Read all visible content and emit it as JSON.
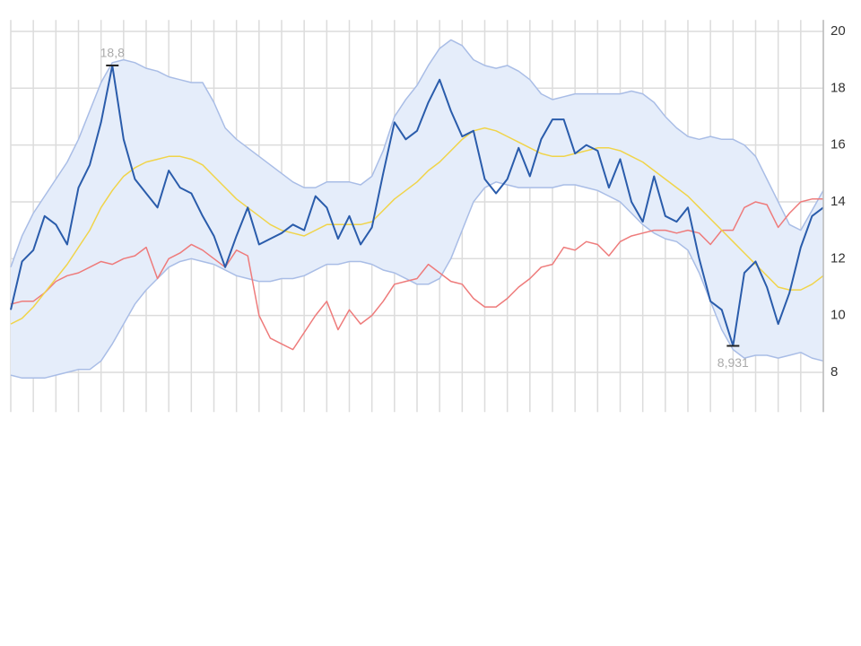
{
  "chart_data": {
    "type": "line",
    "x": [
      0,
      1,
      2,
      3,
      4,
      5,
      6,
      7,
      8,
      9,
      10,
      11,
      12,
      13,
      14,
      15,
      16,
      17,
      18,
      19,
      20,
      21,
      22,
      23,
      24,
      25,
      26,
      27,
      28,
      29,
      30,
      31,
      32,
      33,
      34,
      35,
      36,
      37,
      38,
      39,
      40,
      41,
      42,
      43,
      44,
      45,
      46,
      47,
      48,
      49,
      50,
      51,
      52,
      53,
      54,
      55,
      56,
      57,
      58,
      59,
      60,
      61,
      62,
      63,
      64,
      65,
      66,
      67,
      68,
      69,
      70,
      71,
      72
    ],
    "xlim": [
      0,
      72
    ],
    "xticks": [
      0,
      2,
      4,
      6,
      8,
      10,
      12,
      14,
      16,
      18,
      20,
      22,
      24,
      26,
      28,
      30,
      32,
      34,
      36,
      38,
      40,
      42,
      44,
      46,
      48,
      50,
      52,
      54,
      56,
      58,
      60,
      62,
      64,
      66,
      68,
      70,
      72
    ],
    "ylim": [
      6.6,
      20.4
    ],
    "yticks": [
      8,
      10,
      12,
      14,
      16,
      18,
      20
    ],
    "grid": true,
    "band_fill": "#e5edfa",
    "series": [
      {
        "color": "#2a5cab",
        "values": [
          10.2,
          11.9,
          12.3,
          13.5,
          13.2,
          12.5,
          14.5,
          15.3,
          16.8,
          18.8,
          16.2,
          14.8,
          14.3,
          13.8,
          15.1,
          14.5,
          14.3,
          13.5,
          12.8,
          11.7,
          12.8,
          13.8,
          12.5,
          12.7,
          12.9,
          13.2,
          13.0,
          14.2,
          13.8,
          12.7,
          13.5,
          12.5,
          13.1,
          15.0,
          16.8,
          16.2,
          16.5,
          17.5,
          18.3,
          17.2,
          16.3,
          16.5,
          14.8,
          14.3,
          14.8,
          15.9,
          14.9,
          16.2,
          16.9,
          16.9,
          15.7,
          16.0,
          15.8,
          14.5,
          15.5,
          14.0,
          13.3,
          14.9,
          13.5,
          13.3,
          13.8,
          12.0,
          10.5,
          10.2,
          8.931,
          11.5,
          11.9,
          11.0,
          9.7,
          10.8,
          12.4,
          13.5,
          13.8
        ]
      },
      {
        "color": "#f0d44a",
        "values": [
          9.7,
          9.9,
          10.3,
          10.8,
          11.3,
          11.8,
          12.4,
          13.0,
          13.8,
          14.4,
          14.9,
          15.2,
          15.4,
          15.5,
          15.6,
          15.6,
          15.5,
          15.3,
          14.9,
          14.5,
          14.1,
          13.8,
          13.5,
          13.2,
          13.0,
          12.9,
          12.8,
          13.0,
          13.2,
          13.2,
          13.2,
          13.2,
          13.3,
          13.7,
          14.1,
          14.4,
          14.7,
          15.1,
          15.4,
          15.8,
          16.2,
          16.5,
          16.6,
          16.5,
          16.3,
          16.1,
          15.9,
          15.7,
          15.6,
          15.6,
          15.7,
          15.8,
          15.9,
          15.9,
          15.8,
          15.6,
          15.4,
          15.1,
          14.8,
          14.5,
          14.2,
          13.8,
          13.4,
          13.0,
          12.6,
          12.2,
          11.8,
          11.4,
          11.0,
          10.9,
          10.9,
          11.1,
          11.4
        ]
      },
      {
        "color": "#ee7b7b",
        "values": [
          10.4,
          10.5,
          10.5,
          10.8,
          11.2,
          11.4,
          11.5,
          11.7,
          11.9,
          11.8,
          12.0,
          12.1,
          12.4,
          11.3,
          12.0,
          12.2,
          12.5,
          12.3,
          12.0,
          11.7,
          12.3,
          12.1,
          10.0,
          9.2,
          9.0,
          8.8,
          9.4,
          10.0,
          10.5,
          9.5,
          10.2,
          9.7,
          10.0,
          10.5,
          11.1,
          11.2,
          11.3,
          11.8,
          11.5,
          11.2,
          11.1,
          10.6,
          10.3,
          10.3,
          10.6,
          11.0,
          11.3,
          11.7,
          11.8,
          12.4,
          12.3,
          12.6,
          12.5,
          12.1,
          12.6,
          12.8,
          12.9,
          13.0,
          13.0,
          12.9,
          13.0,
          12.9,
          12.5,
          13.0,
          13.0,
          13.8,
          14.0,
          13.9,
          13.1,
          13.6,
          14.0,
          14.1,
          14.1
        ]
      },
      {
        "color": "#a9bde6",
        "values": [
          11.7,
          12.8,
          13.6,
          14.2,
          14.8,
          15.4,
          16.2,
          17.2,
          18.2,
          18.9,
          19.0,
          18.9,
          18.7,
          18.6,
          18.4,
          18.3,
          18.2,
          18.2,
          17.5,
          16.6,
          16.2,
          15.9,
          15.6,
          15.3,
          15.0,
          14.7,
          14.5,
          14.5,
          14.7,
          14.7,
          14.7,
          14.6,
          14.9,
          15.8,
          17.0,
          17.6,
          18.1,
          18.8,
          19.4,
          19.7,
          19.5,
          19.0,
          18.8,
          18.7,
          18.8,
          18.6,
          18.3,
          17.8,
          17.6,
          17.7,
          17.8,
          17.8,
          17.8,
          17.8,
          17.8,
          17.9,
          17.8,
          17.5,
          17.0,
          16.6,
          16.3,
          16.2,
          16.3,
          16.2,
          16.2,
          16.0,
          15.6,
          14.8,
          14.0,
          13.2,
          13.0,
          13.7,
          14.4
        ]
      },
      {
        "color": "#a9bde6",
        "values": [
          7.9,
          7.8,
          7.8,
          7.8,
          7.9,
          8.0,
          8.1,
          8.1,
          8.4,
          9.0,
          9.7,
          10.4,
          10.9,
          11.3,
          11.7,
          11.9,
          12.0,
          11.9,
          11.8,
          11.6,
          11.4,
          11.3,
          11.2,
          11.2,
          11.3,
          11.3,
          11.4,
          11.6,
          11.8,
          11.8,
          11.9,
          11.9,
          11.8,
          11.6,
          11.5,
          11.3,
          11.1,
          11.1,
          11.3,
          12.0,
          13.0,
          14.0,
          14.5,
          14.7,
          14.6,
          14.5,
          14.5,
          14.5,
          14.5,
          14.6,
          14.6,
          14.5,
          14.4,
          14.2,
          14.0,
          13.6,
          13.2,
          12.9,
          12.7,
          12.6,
          12.3,
          11.5,
          10.5,
          9.5,
          8.8,
          8.5,
          8.6,
          8.6,
          8.5,
          8.6,
          8.7,
          8.5,
          8.4
        ]
      }
    ],
    "annotations": [
      {
        "value": 18.8,
        "label": "18,8"
      },
      {
        "value": 8.931,
        "label": "8,931"
      }
    ]
  }
}
